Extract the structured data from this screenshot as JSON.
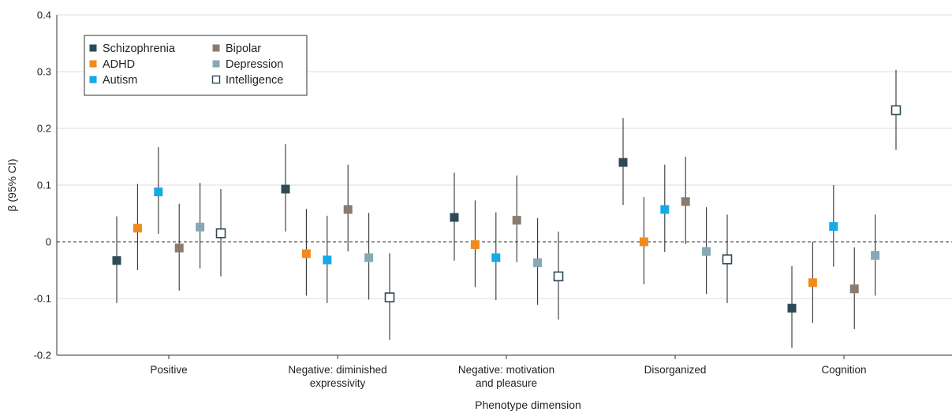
{
  "chart_data": {
    "type": "scatter",
    "subtype": "point-estimate-with-confidence-intervals",
    "xlabel": "Phenotype dimension",
    "ylabel": "β (95% CI)",
    "ylim": [
      -0.2,
      0.4
    ],
    "yticks": [
      -0.2,
      -0.1,
      0,
      0.1,
      0.2,
      0.3,
      0.4
    ],
    "ytick_labels": [
      "-0.2",
      "-0.1",
      "0",
      "0.1",
      "0.2",
      "0.3",
      "0.4"
    ],
    "grid": "horizontal",
    "reference_line": {
      "y": 0,
      "style": "dashed"
    },
    "categories": [
      {
        "lines": [
          "Positive"
        ]
      },
      {
        "lines": [
          "Negative: diminished",
          "expressivity"
        ]
      },
      {
        "lines": [
          "Negative: motivation",
          "and pleasure"
        ]
      },
      {
        "lines": [
          "Disorganized"
        ]
      },
      {
        "lines": [
          "Cognition"
        ]
      }
    ],
    "legend_position": "top-left",
    "series": [
      {
        "name": "Schizophrenia",
        "color": "#2e4a57",
        "marker": "filled-square",
        "values": [
          -0.033,
          0.093,
          0.043,
          0.14,
          -0.117
        ],
        "ci_low": [
          -0.108,
          0.018,
          -0.033,
          0.065,
          -0.187
        ],
        "ci_high": [
          0.045,
          0.172,
          0.122,
          0.218,
          -0.043
        ]
      },
      {
        "name": "ADHD",
        "color": "#f08a1c",
        "marker": "filled-square",
        "values": [
          0.024,
          -0.021,
          -0.005,
          0.0,
          -0.072
        ],
        "ci_low": [
          -0.05,
          -0.095,
          -0.08,
          -0.075,
          -0.143
        ],
        "ci_high": [
          0.102,
          0.058,
          0.073,
          0.079,
          0.0
        ]
      },
      {
        "name": "Autism",
        "color": "#16a9e6",
        "marker": "filled-square",
        "values": [
          0.088,
          -0.032,
          -0.028,
          0.057,
          0.027
        ],
        "ci_low": [
          0.014,
          -0.108,
          -0.103,
          -0.018,
          -0.044
        ],
        "ci_high": [
          0.167,
          0.046,
          0.052,
          0.136,
          0.1
        ]
      },
      {
        "name": "Bipolar",
        "color": "#8a7b6e",
        "marker": "filled-square",
        "values": [
          -0.011,
          0.057,
          0.038,
          0.071,
          -0.083
        ],
        "ci_low": [
          -0.086,
          -0.017,
          -0.036,
          -0.004,
          -0.154
        ],
        "ci_high": [
          0.067,
          0.136,
          0.117,
          0.15,
          -0.01
        ]
      },
      {
        "name": "Depression",
        "color": "#87a8b5",
        "marker": "filled-square",
        "values": [
          0.026,
          -0.028,
          -0.037,
          -0.017,
          -0.024
        ],
        "ci_low": [
          -0.047,
          -0.102,
          -0.111,
          -0.092,
          -0.095
        ],
        "ci_high": [
          0.104,
          0.051,
          0.042,
          0.061,
          0.048
        ]
      },
      {
        "name": "Intelligence",
        "color": "#2e4a57",
        "marker": "open-square",
        "values": [
          0.015,
          -0.098,
          -0.061,
          -0.031,
          0.232
        ],
        "ci_low": [
          -0.061,
          -0.173,
          -0.137,
          -0.108,
          0.162
        ],
        "ci_high": [
          0.093,
          -0.02,
          0.018,
          0.048,
          0.303
        ]
      }
    ]
  }
}
